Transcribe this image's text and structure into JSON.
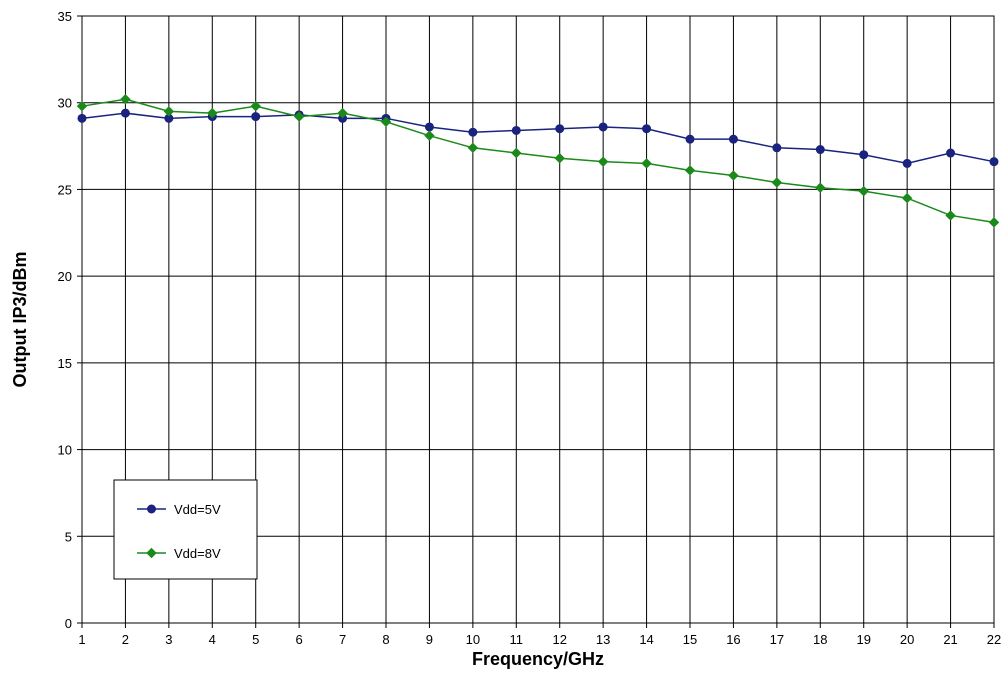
{
  "chart_data": {
    "type": "line",
    "title": "",
    "xlabel": "Frequency/GHz",
    "ylabel": "Output IP3/dBm",
    "x": [
      1,
      2,
      3,
      4,
      5,
      6,
      7,
      8,
      9,
      10,
      11,
      12,
      13,
      14,
      15,
      16,
      17,
      18,
      19,
      20,
      21,
      22
    ],
    "xlim": [
      1,
      22
    ],
    "ylim": [
      0,
      35
    ],
    "yticks": [
      0,
      5,
      10,
      15,
      20,
      25,
      30,
      35
    ],
    "grid": true,
    "legend_position": "bottom-left",
    "series": [
      {
        "name": "Vdd=5V",
        "color": "#1a237e",
        "marker": "circle",
        "values": [
          29.1,
          29.4,
          29.1,
          29.2,
          29.2,
          29.3,
          29.1,
          29.1,
          28.6,
          28.3,
          28.4,
          28.5,
          28.6,
          28.5,
          27.9,
          27.9,
          27.4,
          27.3,
          27.0,
          26.5,
          27.1,
          26.6
        ]
      },
      {
        "name": "Vdd=8V",
        "color": "#1b8a1b",
        "marker": "diamond",
        "values": [
          29.8,
          30.2,
          29.5,
          29.4,
          29.8,
          29.2,
          29.4,
          28.9,
          28.1,
          27.4,
          27.1,
          26.8,
          26.6,
          26.5,
          26.1,
          25.8,
          25.4,
          25.1,
          24.9,
          24.5,
          23.5,
          23.1
        ]
      }
    ]
  }
}
